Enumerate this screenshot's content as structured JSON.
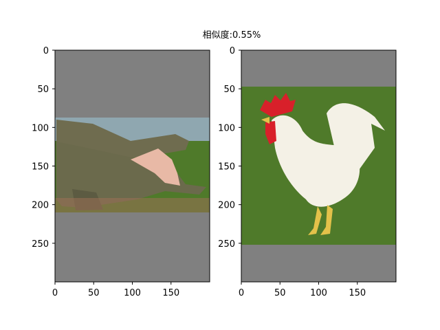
{
  "chart_data": {
    "type": "image",
    "title": "相似度:0.55%",
    "panels": [
      {
        "name": "crocodile",
        "x_ticks": [
          0,
          50,
          100,
          150
        ],
        "y_ticks": [
          0,
          50,
          100,
          150,
          200,
          250
        ],
        "xlim": [
          0,
          200
        ],
        "ylim": [
          300,
          0
        ],
        "background_color": "#808080",
        "image_extent_y": [
          87,
          210
        ]
      },
      {
        "name": "rooster",
        "x_ticks": [
          0,
          50,
          100,
          150
        ],
        "y_ticks": [
          0,
          50,
          100,
          150,
          200,
          250
        ],
        "xlim": [
          0,
          200
        ],
        "ylim": [
          300,
          0
        ],
        "background_color": "#808080",
        "image_extent_y": [
          47,
          251
        ]
      }
    ]
  },
  "colors": {
    "pad": "#808080",
    "water": "#8fa7b0",
    "grass": "#4f7a2a",
    "croc": "#6b6a4c",
    "croc_mouth": "#e8b9a6",
    "rooster_body": "#f4f1e6",
    "comb": "#d8202a"
  }
}
